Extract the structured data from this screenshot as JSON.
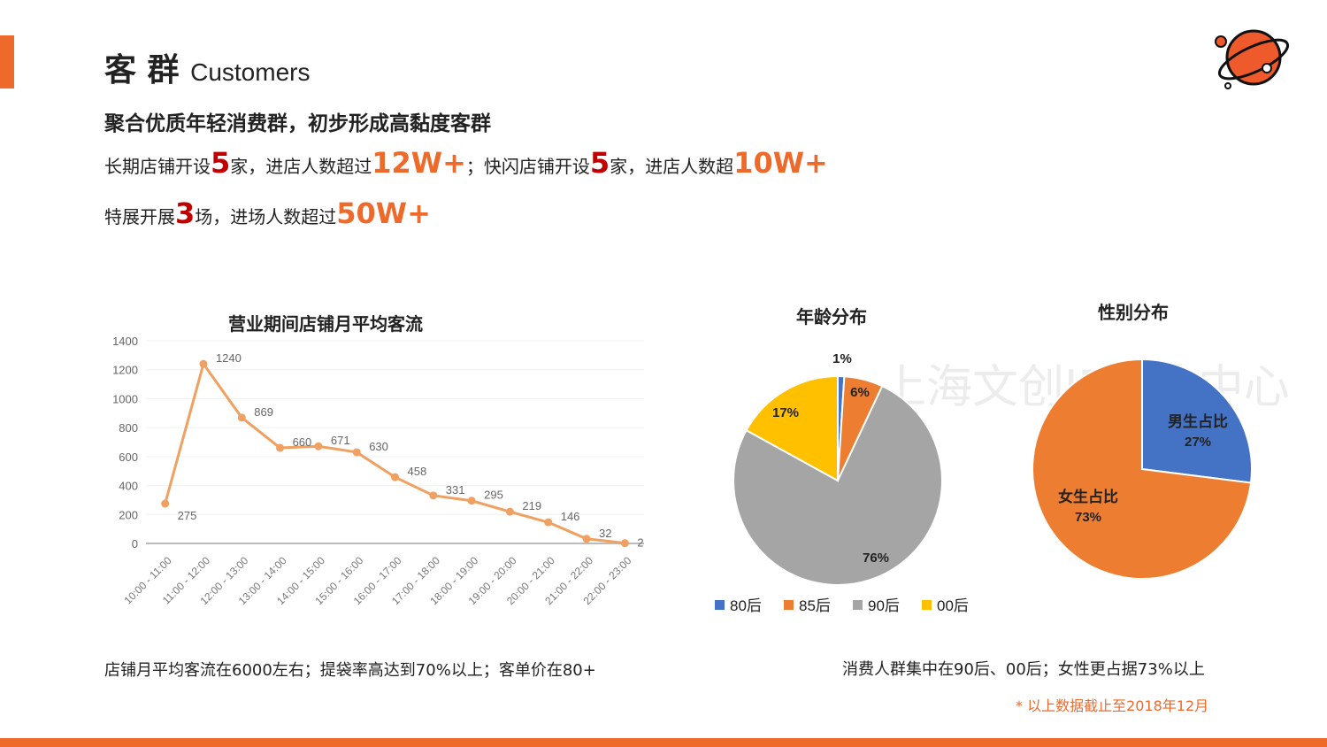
{
  "header": {
    "title_cn": "客 群",
    "title_en": "Customers",
    "subtitle": "聚合优质年轻消费群，初步形成高黏度客群"
  },
  "stats": {
    "line1": [
      {
        "t": "长期店铺开设"
      },
      {
        "t": "5",
        "s": "hr"
      },
      {
        "t": "家，进店人数超过"
      },
      {
        "t": "12W+",
        "s": "hl"
      },
      {
        "t": "；快闪店铺开设"
      },
      {
        "t": "5",
        "s": "hr"
      },
      {
        "t": "家，进店人数超"
      },
      {
        "t": "10W+",
        "s": "hl"
      }
    ],
    "line2": [
      {
        "t": "特展开展"
      },
      {
        "t": "3",
        "s": "hr"
      },
      {
        "t": "场，进场人数超过"
      },
      {
        "t": "50W+",
        "s": "hl"
      }
    ]
  },
  "colors": {
    "accent": "#ee6a2b",
    "line": "#f0a060",
    "blue": "#4472c4",
    "orange": "#ed7d31",
    "gray": "#a5a5a5",
    "yellow": "#ffc000",
    "red": "#c00000"
  },
  "logo": {
    "icon": "planet-icon"
  },
  "watermark": "上海文创IP产业中心",
  "chart_data": [
    {
      "type": "line",
      "title": "营业期间店铺月平均客流",
      "categories": [
        "10:00 - 11:00",
        "11:00 - 12:00",
        "12:00 - 13:00",
        "13:00 - 14:00",
        "14:00 - 15:00",
        "15:00 - 16:00",
        "16:00 - 17:00",
        "17:00 - 18:00",
        "18:00 - 19:00",
        "19:00 - 20:00",
        "20:00 - 21:00",
        "21:00 - 22:00",
        "22:00 - 23:00"
      ],
      "values": [
        275,
        1240,
        869,
        660,
        671,
        630,
        458,
        331,
        295,
        219,
        146,
        32,
        2
      ],
      "ylim": [
        0,
        1400
      ],
      "yticks": [
        0,
        200,
        400,
        600,
        800,
        1000,
        1200,
        1400
      ],
      "grid": true,
      "data_labels": true
    },
    {
      "type": "pie",
      "title": "年龄分布",
      "legend": "bottom",
      "slices": [
        {
          "label": "80后",
          "value": 1,
          "color": "#4472c4"
        },
        {
          "label": "85后",
          "value": 6,
          "color": "#ed7d31"
        },
        {
          "label": "90后",
          "value": 76,
          "color": "#a5a5a5"
        },
        {
          "label": "00后",
          "value": 17,
          "color": "#ffc000"
        }
      ]
    },
    {
      "type": "pie",
      "title": "性别分布",
      "slices": [
        {
          "label": "男生占比",
          "value": 27,
          "color": "#4472c4"
        },
        {
          "label": "女生占比",
          "value": 73,
          "color": "#ed7d31"
        }
      ]
    }
  ],
  "notes": {
    "left": "店铺月平均客流在6000左右；提袋率高达到70%以上；客单价在80+",
    "right": "消费人群集中在90后、00后；女性更占据73%以上",
    "footnote": "* 以上数据截止至2018年12月"
  }
}
